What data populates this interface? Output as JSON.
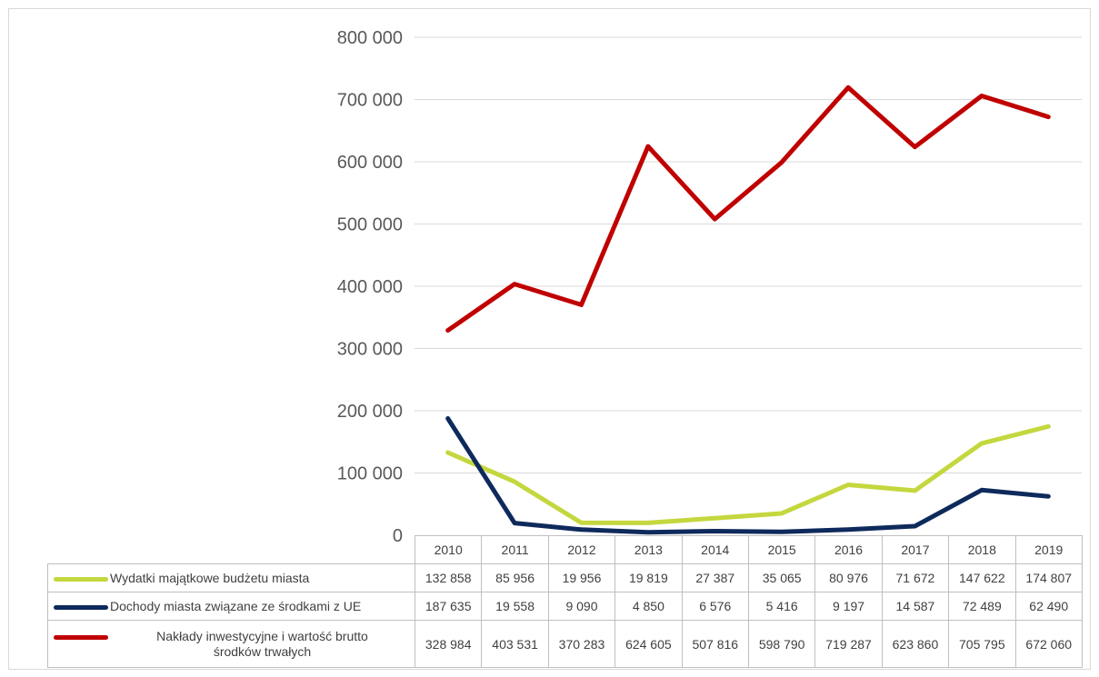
{
  "chart_data": {
    "type": "line",
    "categories": [
      "2010",
      "2011",
      "2012",
      "2013",
      "2014",
      "2015",
      "2016",
      "2017",
      "2018",
      "2019"
    ],
    "ylim": [
      0,
      800000
    ],
    "yticks": [
      "0",
      "100 000",
      "200 000",
      "300 000",
      "400 000",
      "500 000",
      "600 000",
      "700 000",
      "800 000"
    ],
    "ytick_values": [
      0,
      100000,
      200000,
      300000,
      400000,
      500000,
      600000,
      700000,
      800000
    ],
    "grid": true,
    "legend": "data-table",
    "series": [
      {
        "name": "Wydatki majątkowe budżetu miasta",
        "color": "#c4d73e",
        "values": [
          132858,
          85956,
          19956,
          19819,
          27387,
          35065,
          80976,
          71672,
          147622,
          174807
        ],
        "labels": [
          "132 858",
          "85 956",
          "19 956",
          "19 819",
          "27 387",
          "35 065",
          "80 976",
          "71 672",
          "147 622",
          "174 807"
        ]
      },
      {
        "name": "Dochody miasta związane ze środkami z UE",
        "color": "#0e2a5c",
        "values": [
          187635,
          19558,
          9090,
          4850,
          6576,
          5416,
          9197,
          14587,
          72489,
          62490
        ],
        "labels": [
          "187 635",
          "19 558",
          "9 090",
          "4 850",
          "6 576",
          "5 416",
          "9 197",
          "14 587",
          "72 489",
          "62 490"
        ]
      },
      {
        "name_line1": "Nakłady inwestycyjne i wartość brutto",
        "name_line2": "środków trwałych",
        "color": "#c00000",
        "values": [
          328984,
          403531,
          370283,
          624605,
          507816,
          598790,
          719287,
          623860,
          705795,
          672060
        ],
        "labels": [
          "328 984",
          "403 531",
          "370 283",
          "624 605",
          "507 816",
          "598 790",
          "719 287",
          "623 860",
          "705 795",
          "672 060"
        ]
      }
    ]
  }
}
